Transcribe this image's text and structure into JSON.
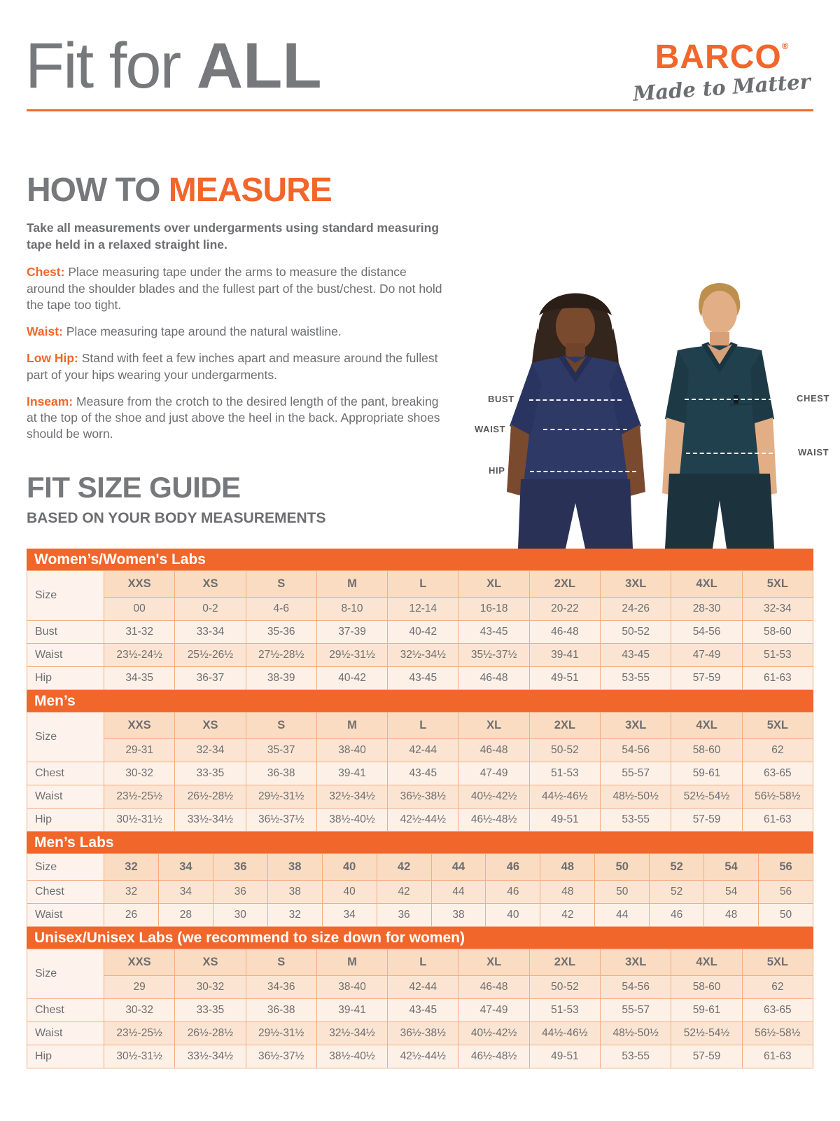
{
  "header": {
    "title_regular": "Fit for ",
    "title_bold": "ALL",
    "brand": "BARCO",
    "brand_reg": "®",
    "tagline": "Made to Matter"
  },
  "colors": {
    "accent_orange": "#F1662B",
    "heading_gray": "#77787B",
    "body_gray": "#6D6E71",
    "table_border": "#F3AD80",
    "table_header_bg": "#FADCC2",
    "table_row_peach": "#FBE5D2",
    "table_row_cream": "#FDF0E7",
    "table_label_bg": "#FDF3EC",
    "female_scrub": "#2E3966",
    "male_scrub": "#21404D"
  },
  "how_to_measure": {
    "heading_gray": "HOW TO ",
    "heading_orange": "MEASURE",
    "intro": "Take all measurements over undergarments using standard measuring tape held in a relaxed straight line.",
    "items": [
      {
        "label": "Chest:",
        "text": "Place measuring tape under the arms to measure the distance around the shoulder blades and the fullest part of the bust/chest. Do not hold the tape too tight."
      },
      {
        "label": "Waist:",
        "text": "Place measuring tape around the natural waistline."
      },
      {
        "label": "Low Hip:",
        "text": "Stand with feet a few inches apart and measure around the fullest part of your hips wearing your undergarments."
      },
      {
        "label": "Inseam:",
        "text": "Measure from the crotch to the desired length of the pant, breaking at the top of the shoe and just above the heel in the back. Appropriate shoes should be worn."
      }
    ]
  },
  "figure": {
    "bust_label": "BUST",
    "waist_female_label": "WAIST",
    "hip_label": "HIP",
    "chest_label": "CHEST",
    "waist_male_label": "WAIST"
  },
  "size_guide": {
    "heading": "FIT SIZE GUIDE",
    "subheading": "BASED ON YOUR BODY MEASUREMENTS",
    "tables": [
      {
        "title": "Women’s/Women's Labs",
        "label_header": "Size",
        "columns": [
          "XXS",
          "XS",
          "S",
          "M",
          "L",
          "XL",
          "2XL",
          "3XL",
          "4XL",
          "5XL"
        ],
        "rows": [
          {
            "label": "",
            "values": [
              "00",
              "0-2",
              "4-6",
              "8-10",
              "12-14",
              "16-18",
              "20-22",
              "24-26",
              "28-30",
              "32-34"
            ]
          },
          {
            "label": "Bust",
            "values": [
              "31-32",
              "33-34",
              "35-36",
              "37-39",
              "40-42",
              "43-45",
              "46-48",
              "50-52",
              "54-56",
              "58-60"
            ]
          },
          {
            "label": "Waist",
            "values": [
              "23½-24½",
              "25½-26½",
              "27½-28½",
              "29½-31½",
              "32½-34½",
              "35½-37½",
              "39-41",
              "43-45",
              "47-49",
              "51-53"
            ]
          },
          {
            "label": "Hip",
            "values": [
              "34-35",
              "36-37",
              "38-39",
              "40-42",
              "43-45",
              "46-48",
              "49-51",
              "53-55",
              "57-59",
              "61-63"
            ]
          }
        ]
      },
      {
        "title": "Men’s",
        "label_header": "Size",
        "columns": [
          "XXS",
          "XS",
          "S",
          "M",
          "L",
          "XL",
          "2XL",
          "3XL",
          "4XL",
          "5XL"
        ],
        "rows": [
          {
            "label": "",
            "values": [
              "29-31",
              "32-34",
              "35-37",
              "38-40",
              "42-44",
              "46-48",
              "50-52",
              "54-56",
              "58-60",
              "62"
            ]
          },
          {
            "label": "Chest",
            "values": [
              "30-32",
              "33-35",
              "36-38",
              "39-41",
              "43-45",
              "47-49",
              "51-53",
              "55-57",
              "59-61",
              "63-65"
            ]
          },
          {
            "label": "Waist",
            "values": [
              "23½-25½",
              "26½-28½",
              "29½-31½",
              "32½-34½",
              "36½-38½",
              "40½-42½",
              "44½-46½",
              "48½-50½",
              "52½-54½",
              "56½-58½"
            ]
          },
          {
            "label": "Hip",
            "values": [
              "30½-31½",
              "33½-34½",
              "36½-37½",
              "38½-40½",
              "42½-44½",
              "46½-48½",
              "49-51",
              "53-55",
              "57-59",
              "61-63"
            ]
          }
        ]
      },
      {
        "title": "Men’s Labs",
        "label_header": "Size",
        "columns": [
          "32",
          "34",
          "36",
          "38",
          "40",
          "42",
          "44",
          "46",
          "48",
          "50",
          "52",
          "54",
          "56"
        ],
        "rows": [
          {
            "label": "Chest",
            "values": [
              "32",
              "34",
              "36",
              "38",
              "40",
              "42",
              "44",
              "46",
              "48",
              "50",
              "52",
              "54",
              "56"
            ]
          },
          {
            "label": "Waist",
            "values": [
              "26",
              "28",
              "30",
              "32",
              "34",
              "36",
              "38",
              "40",
              "42",
              "44",
              "46",
              "48",
              "50"
            ]
          }
        ]
      },
      {
        "title": "Unisex/Unisex Labs (we recommend to size down for women)",
        "label_header": "Size",
        "columns": [
          "XXS",
          "XS",
          "S",
          "M",
          "L",
          "XL",
          "2XL",
          "3XL",
          "4XL",
          "5XL"
        ],
        "rows": [
          {
            "label": "",
            "values": [
              "29",
              "30-32",
              "34-36",
              "38-40",
              "42-44",
              "46-48",
              "50-52",
              "54-56",
              "58-60",
              "62"
            ]
          },
          {
            "label": "Chest",
            "values": [
              "30-32",
              "33-35",
              "36-38",
              "39-41",
              "43-45",
              "47-49",
              "51-53",
              "55-57",
              "59-61",
              "63-65"
            ]
          },
          {
            "label": "Waist",
            "values": [
              "23½-25½",
              "26½-28½",
              "29½-31½",
              "32½-34½",
              "36½-38½",
              "40½-42½",
              "44½-46½",
              "48½-50½",
              "52½-54½",
              "56½-58½"
            ]
          },
          {
            "label": "Hip",
            "values": [
              "30½-31½",
              "33½-34½",
              "36½-37½",
              "38½-40½",
              "42½-44½",
              "46½-48½",
              "49-51",
              "53-55",
              "57-59",
              "61-63"
            ]
          }
        ]
      }
    ]
  }
}
